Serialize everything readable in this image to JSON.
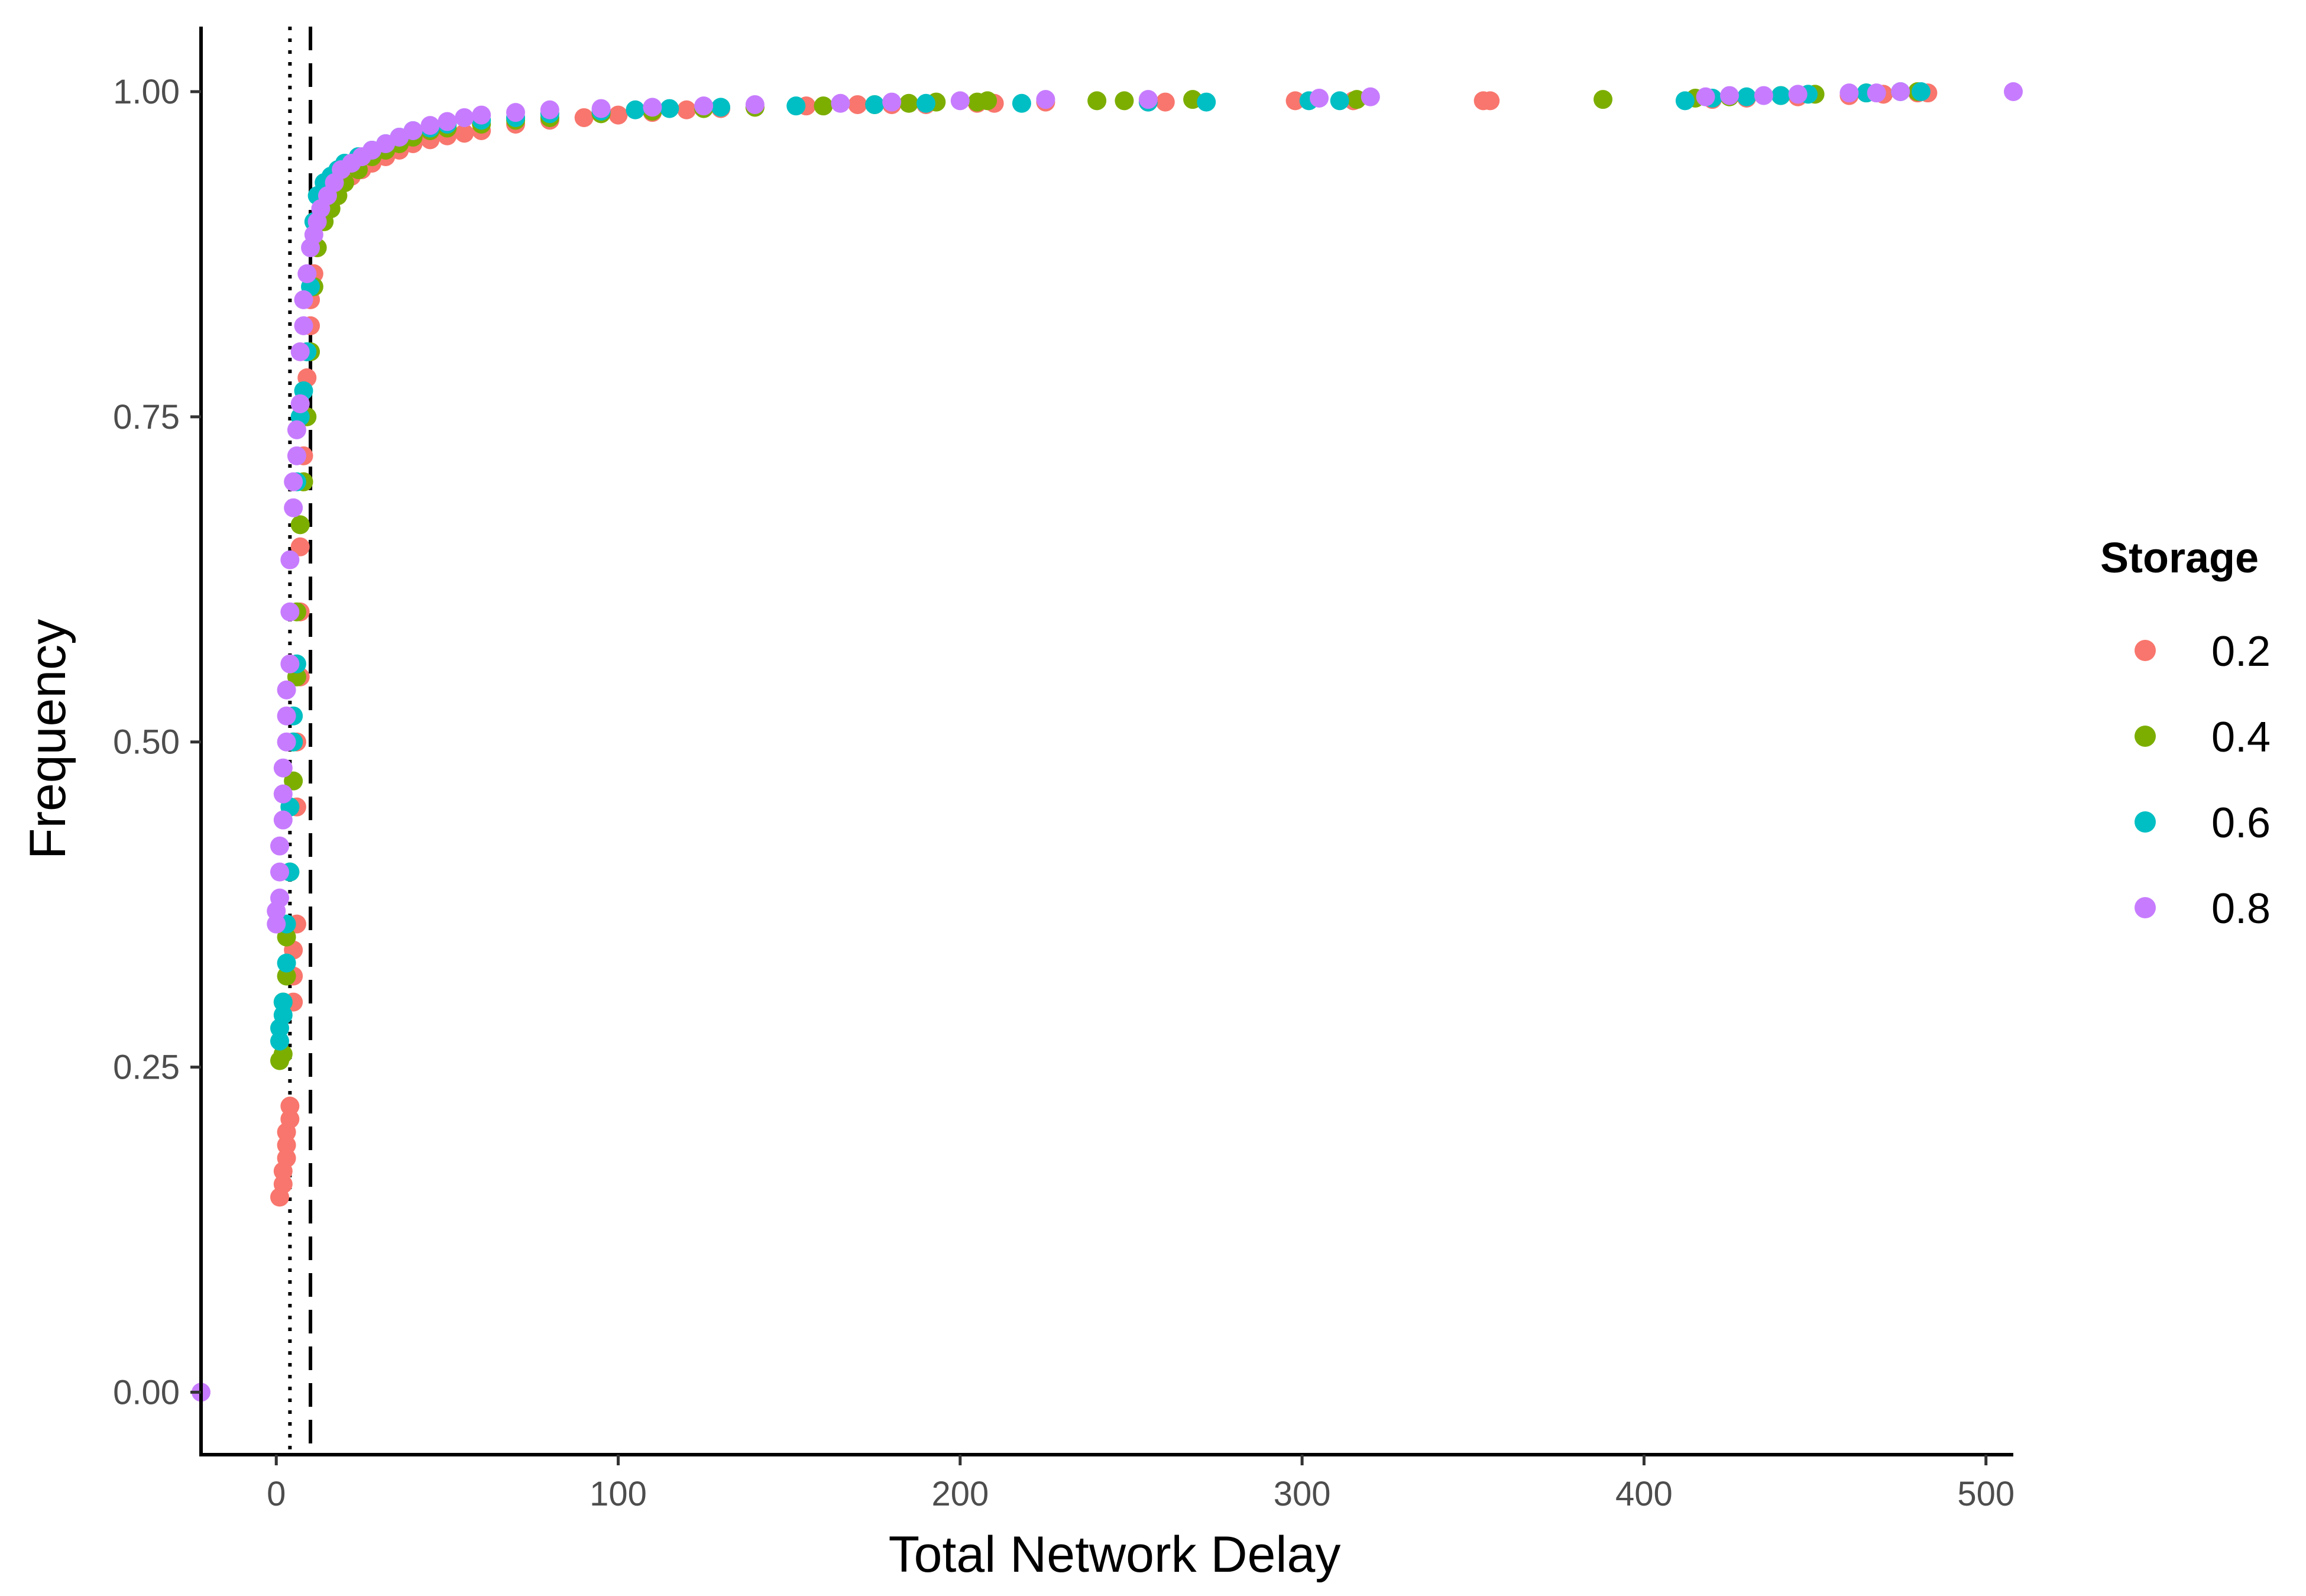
{
  "chart_data": {
    "type": "scatter",
    "title": "",
    "xlabel": "Total Network Delay",
    "ylabel": "Frequency",
    "xlim": [
      -22,
      508
    ],
    "ylim": [
      -0.048,
      1.05
    ],
    "x_ticks": [
      0,
      100,
      200,
      300,
      400,
      500
    ],
    "x_tick_labels": [
      "0",
      "100",
      "200",
      "300",
      "400",
      "500"
    ],
    "y_ticks": [
      0,
      0.25,
      0.5,
      0.75,
      1.0
    ],
    "y_tick_labels": [
      "0.00",
      "0.25",
      "0.50",
      "0.75",
      "1.00"
    ],
    "grid": false,
    "legend": {
      "title": "Storage",
      "position": "right"
    },
    "reference_lines": [
      {
        "x": 4,
        "style": "dotted",
        "color": "#000000"
      },
      {
        "x": 10,
        "style": "dashed",
        "color": "#000000"
      }
    ],
    "series": [
      {
        "name": "0.2",
        "color": "#F8766D",
        "x": [
          1,
          2,
          2,
          3,
          3,
          3,
          4,
          4,
          5,
          5,
          5,
          6,
          6,
          6,
          7,
          7,
          7,
          8,
          8,
          8,
          9,
          9,
          10,
          10,
          11,
          12,
          13,
          14,
          15,
          16,
          18,
          20,
          22,
          25,
          28,
          32,
          36,
          40,
          45,
          50,
          55,
          60,
          70,
          80,
          90,
          100,
          110,
          120,
          130,
          140,
          155,
          170,
          180,
          190,
          205,
          210,
          225,
          255,
          260,
          298,
          315,
          353,
          355,
          420,
          430,
          445,
          460,
          470,
          480,
          483
        ],
        "y": [
          0.15,
          0.16,
          0.17,
          0.18,
          0.19,
          0.2,
          0.21,
          0.22,
          0.3,
          0.32,
          0.34,
          0.36,
          0.45,
          0.5,
          0.55,
          0.6,
          0.65,
          0.7,
          0.72,
          0.75,
          0.78,
          0.8,
          0.82,
          0.84,
          0.86,
          0.88,
          0.9,
          0.905,
          0.91,
          0.915,
          0.92,
          0.93,
          0.935,
          0.94,
          0.945,
          0.95,
          0.955,
          0.96,
          0.963,
          0.966,
          0.968,
          0.97,
          0.975,
          0.978,
          0.98,
          0.982,
          0.984,
          0.986,
          0.987,
          0.988,
          0.989,
          0.99,
          0.99,
          0.99,
          0.991,
          0.991,
          0.992,
          0.992,
          0.992,
          0.993,
          0.993,
          0.993,
          0.993,
          0.994,
          0.995,
          0.996,
          0.997,
          0.998,
          0.999,
          0.999
        ]
      },
      {
        "name": "0.4",
        "color": "#7CAE00",
        "x": [
          1,
          2,
          2,
          3,
          3,
          4,
          4,
          5,
          5,
          6,
          6,
          7,
          8,
          9,
          10,
          11,
          12,
          14,
          16,
          18,
          20,
          24,
          28,
          32,
          36,
          40,
          45,
          50,
          60,
          70,
          80,
          95,
          110,
          125,
          140,
          160,
          175,
          185,
          193,
          205,
          208,
          240,
          248,
          268,
          316,
          388,
          415,
          425,
          440,
          450,
          465,
          480
        ],
        "y": [
          0.255,
          0.26,
          0.3,
          0.32,
          0.35,
          0.4,
          0.45,
          0.47,
          0.5,
          0.55,
          0.6,
          0.667,
          0.7,
          0.75,
          0.8,
          0.85,
          0.88,
          0.9,
          0.91,
          0.92,
          0.93,
          0.94,
          0.95,
          0.955,
          0.96,
          0.965,
          0.97,
          0.972,
          0.975,
          0.978,
          0.98,
          0.983,
          0.985,
          0.987,
          0.988,
          0.989,
          0.99,
          0.991,
          0.992,
          0.992,
          0.993,
          0.993,
          0.993,
          0.994,
          0.994,
          0.994,
          0.995,
          0.996,
          0.997,
          0.998,
          0.999,
          1.0
        ]
      },
      {
        "name": "0.6",
        "color": "#00BFC4",
        "x": [
          1,
          1,
          2,
          2,
          3,
          3,
          4,
          4,
          5,
          5,
          6,
          6,
          7,
          8,
          9,
          10,
          11,
          12,
          14,
          16,
          18,
          20,
          24,
          28,
          32,
          36,
          40,
          45,
          50,
          60,
          70,
          80,
          95,
          105,
          115,
          130,
          152,
          175,
          190,
          218,
          255,
          272,
          302,
          311,
          412,
          420,
          430,
          440,
          448,
          465,
          475,
          481
        ],
        "y": [
          0.27,
          0.28,
          0.29,
          0.3,
          0.33,
          0.36,
          0.4,
          0.45,
          0.5,
          0.52,
          0.56,
          0.7,
          0.75,
          0.77,
          0.8,
          0.85,
          0.9,
          0.92,
          0.93,
          0.935,
          0.94,
          0.945,
          0.95,
          0.955,
          0.96,
          0.965,
          0.97,
          0.972,
          0.975,
          0.978,
          0.98,
          0.983,
          0.985,
          0.986,
          0.987,
          0.988,
          0.989,
          0.99,
          0.991,
          0.991,
          0.992,
          0.992,
          0.993,
          0.993,
          0.993,
          0.995,
          0.996,
          0.997,
          0.998,
          0.999,
          1.0,
          1.0
        ]
      },
      {
        "name": "0.8",
        "color": "#C77CFF",
        "x": [
          -22,
          0,
          0,
          1,
          1,
          1,
          2,
          2,
          2,
          3,
          3,
          3,
          4,
          4,
          4,
          5,
          5,
          6,
          6,
          7,
          7,
          8,
          8,
          9,
          10,
          11,
          12,
          13,
          15,
          17,
          19,
          22,
          25,
          28,
          32,
          36,
          40,
          45,
          50,
          55,
          60,
          70,
          80,
          95,
          110,
          125,
          140,
          165,
          180,
          200,
          225,
          255,
          305,
          320,
          418,
          425,
          435,
          445,
          460,
          468,
          475,
          508
        ],
        "y": [
          0.0,
          0.36,
          0.37,
          0.38,
          0.4,
          0.42,
          0.44,
          0.46,
          0.48,
          0.5,
          0.52,
          0.54,
          0.56,
          0.6,
          0.64,
          0.68,
          0.7,
          0.72,
          0.74,
          0.76,
          0.8,
          0.82,
          0.84,
          0.86,
          0.88,
          0.89,
          0.9,
          0.91,
          0.92,
          0.93,
          0.94,
          0.945,
          0.95,
          0.955,
          0.96,
          0.965,
          0.97,
          0.974,
          0.977,
          0.98,
          0.982,
          0.984,
          0.986,
          0.987,
          0.988,
          0.989,
          0.99,
          0.991,
          0.992,
          0.993,
          0.994,
          0.994,
          0.995,
          0.996,
          0.996,
          0.997,
          0.997,
          0.998,
          0.999,
          0.999,
          1.0,
          1.0
        ]
      }
    ]
  }
}
